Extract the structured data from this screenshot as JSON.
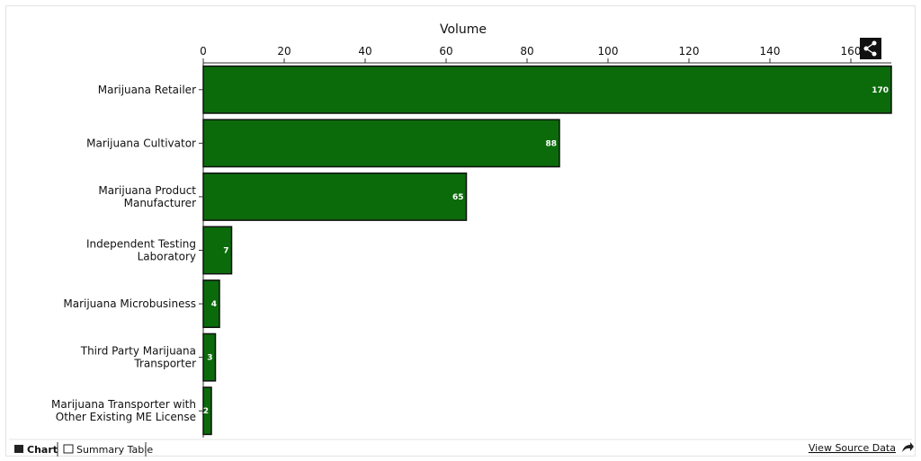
{
  "chart_data": {
    "type": "hbar",
    "x_label": "Volume",
    "categories": [
      "Marijuana Retailer",
      "Marijuana Cultivator",
      "Marijuana Product Manufacturer",
      "Independent Testing Laboratory",
      "Marijuana Microbusiness",
      "Third Party Marijuana Transporter",
      "Marijuana Transporter with Other Existing ME License"
    ],
    "values": [
      170,
      88,
      65,
      7,
      4,
      3,
      2
    ],
    "color": "#0b6b0b",
    "xlim": [
      0,
      170
    ],
    "xticks": [
      0,
      20,
      40,
      60,
      80,
      100,
      120,
      140,
      160
    ]
  },
  "ui": {
    "tabs": [
      "Chart",
      "Summary Table"
    ],
    "source_link": "View Source Data"
  }
}
